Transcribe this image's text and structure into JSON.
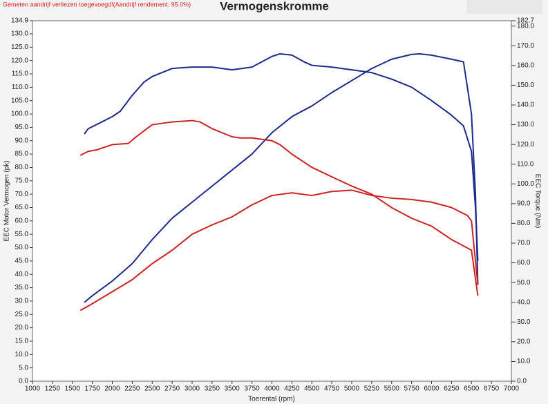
{
  "chart_data": {
    "type": "line",
    "title": "Vermogenskromme",
    "note": "Gemeten aandrijf verliezen toegevoegd!(Aandrijf rendement: 95.0%)",
    "x_label": "Toerental (rpm)",
    "y_label": "EEC Motor Vermogen (pk)",
    "y2_label": "EEC Torque (Nm)",
    "xlim": [
      1000,
      7000
    ],
    "xticks": [
      1000,
      1250,
      1500,
      1750,
      2000,
      2250,
      2500,
      2750,
      3000,
      3250,
      3500,
      3750,
      4000,
      4250,
      4500,
      4750,
      5000,
      5250,
      5500,
      5750,
      6000,
      6250,
      6500,
      6750,
      7000
    ],
    "ylim": [
      0,
      134.9
    ],
    "yticks": [
      {
        "value": 0,
        "label": "0.0"
      },
      {
        "value": 5,
        "label": "5.0"
      },
      {
        "value": 10,
        "label": "10.0"
      },
      {
        "value": 15,
        "label": "15.0"
      },
      {
        "value": 20,
        "label": "20.0"
      },
      {
        "value": 25,
        "label": "25.0"
      },
      {
        "value": 30,
        "label": "30.0"
      },
      {
        "value": 35,
        "label": "35.0"
      },
      {
        "value": 40,
        "label": "40.0"
      },
      {
        "value": 45,
        "label": "45.0"
      },
      {
        "value": 50,
        "label": "50.0"
      },
      {
        "value": 55,
        "label": "55.0"
      },
      {
        "value": 60,
        "label": "60.0"
      },
      {
        "value": 65,
        "label": "65.0"
      },
      {
        "value": 70,
        "label": "70.0"
      },
      {
        "value": 75,
        "label": "75.0"
      },
      {
        "value": 80,
        "label": "80.0"
      },
      {
        "value": 85,
        "label": "85.0"
      },
      {
        "value": 90,
        "label": "90.0"
      },
      {
        "value": 95,
        "label": "95.0"
      },
      {
        "value": 100,
        "label": "100.0"
      },
      {
        "value": 105,
        "label": "105.0"
      },
      {
        "value": 110,
        "label": "110.0"
      },
      {
        "value": 115,
        "label": "115.0"
      },
      {
        "value": 120,
        "label": "120.0"
      },
      {
        "value": 125,
        "label": "125.0"
      },
      {
        "value": 130,
        "label": "130.0"
      },
      134.9
    ],
    "y2lim": [
      0,
      182.7
    ],
    "y2ticks": [
      {
        "value": 0,
        "label": "0.0"
      },
      {
        "value": 10,
        "label": "10.0"
      },
      {
        "value": 20,
        "label": "20.0"
      },
      {
        "value": 30,
        "label": "30.0"
      },
      {
        "value": 40,
        "label": "40.0"
      },
      {
        "value": 50,
        "label": "50.0"
      },
      {
        "value": 60,
        "label": "60.0"
      },
      {
        "value": 70,
        "label": "70.0"
      },
      {
        "value": 80,
        "label": "80.0"
      },
      {
        "value": 90,
        "label": "90.0"
      },
      {
        "value": 100,
        "label": "100.0"
      },
      {
        "value": 110,
        "label": "110.0"
      },
      {
        "value": 120,
        "label": "120.0"
      },
      {
        "value": 130,
        "label": "130.0"
      },
      {
        "value": 140,
        "label": "140.0"
      },
      {
        "value": 150,
        "label": "150.0"
      },
      {
        "value": 160,
        "label": "160.0"
      },
      {
        "value": 170,
        "label": "170.0"
      },
      {
        "value": 180,
        "label": "180.0"
      },
      182.7
    ],
    "series": [
      {
        "color": "#1c2a8c",
        "axis": "y",
        "x": [
          1650,
          1750,
          2000,
          2250,
          2500,
          2750,
          3000,
          3250,
          3500,
          3750,
          4000,
          4250,
          4500,
          4750,
          5000,
          5250,
          5500,
          5750,
          5850,
          6000,
          6250,
          6400,
          6500,
          6550,
          6580
        ],
        "values": [
          29.5,
          32,
          37.5,
          44,
          53,
          61,
          67,
          73,
          79,
          85,
          93,
          99,
          103,
          108,
          112.5,
          117,
          120.5,
          122.3,
          122.5,
          122,
          120.5,
          119.5,
          100,
          70,
          36
        ]
      },
      {
        "color": "#cc2222",
        "axis": "y",
        "x": [
          1600,
          1750,
          2000,
          2250,
          2500,
          2750,
          3000,
          3250,
          3500,
          3750,
          4000,
          4250,
          4500,
          4750,
          5000,
          5250,
          5500,
          5750,
          6000,
          6250,
          6450,
          6500,
          6550,
          6580
        ],
        "values": [
          26.5,
          29,
          33.5,
          38,
          44,
          49,
          55,
          58.5,
          61.5,
          66,
          69.5,
          70.5,
          69.5,
          71,
          71.5,
          69.5,
          68.5,
          68,
          67,
          65,
          62,
          60,
          45,
          36
        ]
      },
      {
        "color": "#1c2a8c",
        "axis": "y2",
        "x": [
          1650,
          1700,
          1800,
          2000,
          2100,
          2250,
          2400,
          2500,
          2750,
          3000,
          3250,
          3500,
          3750,
          4000,
          4100,
          4250,
          4400,
          4500,
          4750,
          5000,
          5250,
          5500,
          5750,
          6000,
          6250,
          6400,
          6500,
          6550,
          6580
        ],
        "values": [
          125.3,
          128,
          130,
          134.1,
          136.8,
          144.9,
          151.7,
          154.4,
          158.5,
          159.2,
          159.2,
          157.8,
          159.2,
          164.6,
          165.9,
          165.3,
          161.9,
          160.1,
          159.2,
          157.8,
          156.4,
          153.1,
          149,
          142.2,
          134.8,
          129.4,
          116.5,
          88,
          61
        ]
      },
      {
        "color": "#cc2222",
        "axis": "y2",
        "x": [
          1600,
          1700,
          1800,
          2000,
          2200,
          2300,
          2500,
          2750,
          3000,
          3100,
          3250,
          3500,
          3600,
          3750,
          4000,
          4100,
          4250,
          4500,
          4750,
          5000,
          5250,
          5500,
          5750,
          6000,
          6250,
          6500,
          6580
        ],
        "values": [
          114.5,
          116.5,
          117.2,
          119.9,
          120.5,
          123.9,
          130,
          131.4,
          132.1,
          131.4,
          128,
          123.9,
          123.3,
          123.3,
          121.9,
          119.9,
          115.1,
          108.4,
          103.6,
          98.9,
          94.8,
          88,
          82.6,
          78.6,
          71.8,
          66.4,
          43.3
        ]
      }
    ]
  }
}
